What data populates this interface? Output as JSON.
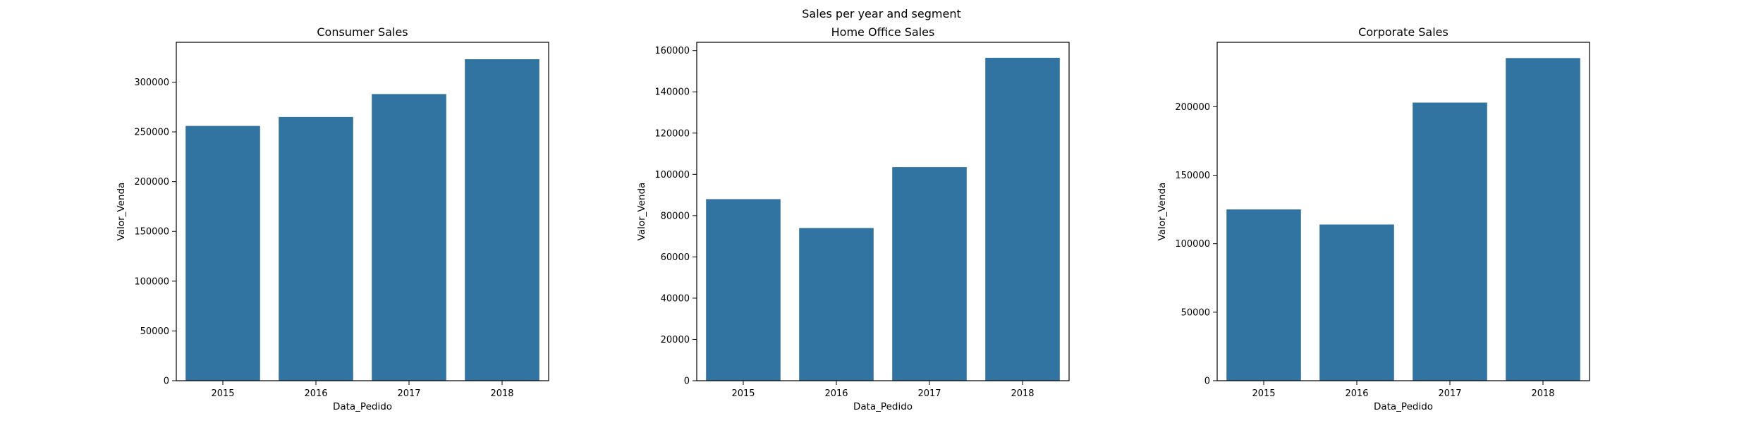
{
  "suptitle": "Sales per year and segment",
  "chart_data": [
    {
      "type": "bar",
      "title": "Consumer Sales",
      "xlabel": "Data_Pedido",
      "ylabel": "Valor_Venda",
      "categories": [
        "2015",
        "2016",
        "2017",
        "2018"
      ],
      "values": [
        256000,
        265000,
        288000,
        323000
      ],
      "ylim": [
        0,
        340000
      ],
      "yticks": [
        0,
        50000,
        100000,
        150000,
        200000,
        250000,
        300000
      ],
      "color": "#3274a1",
      "grid": false
    },
    {
      "type": "bar",
      "title": "Home Office Sales",
      "xlabel": "Data_Pedido",
      "ylabel": "Valor_Venda",
      "categories": [
        "2015",
        "2016",
        "2017",
        "2018"
      ],
      "values": [
        88000,
        74000,
        103500,
        156500
      ],
      "ylim": [
        0,
        164000
      ],
      "yticks": [
        0,
        20000,
        40000,
        60000,
        80000,
        100000,
        120000,
        140000,
        160000
      ],
      "color": "#3274a1",
      "grid": false
    },
    {
      "type": "bar",
      "title": "Corporate Sales",
      "xlabel": "Data_Pedido",
      "ylabel": "Valor_Venda",
      "categories": [
        "2015",
        "2016",
        "2017",
        "2018"
      ],
      "values": [
        125000,
        114000,
        203000,
        235500
      ],
      "ylim": [
        0,
        247000
      ],
      "yticks": [
        0,
        50000,
        100000,
        150000,
        200000
      ],
      "color": "#3274a1",
      "grid": false
    }
  ]
}
